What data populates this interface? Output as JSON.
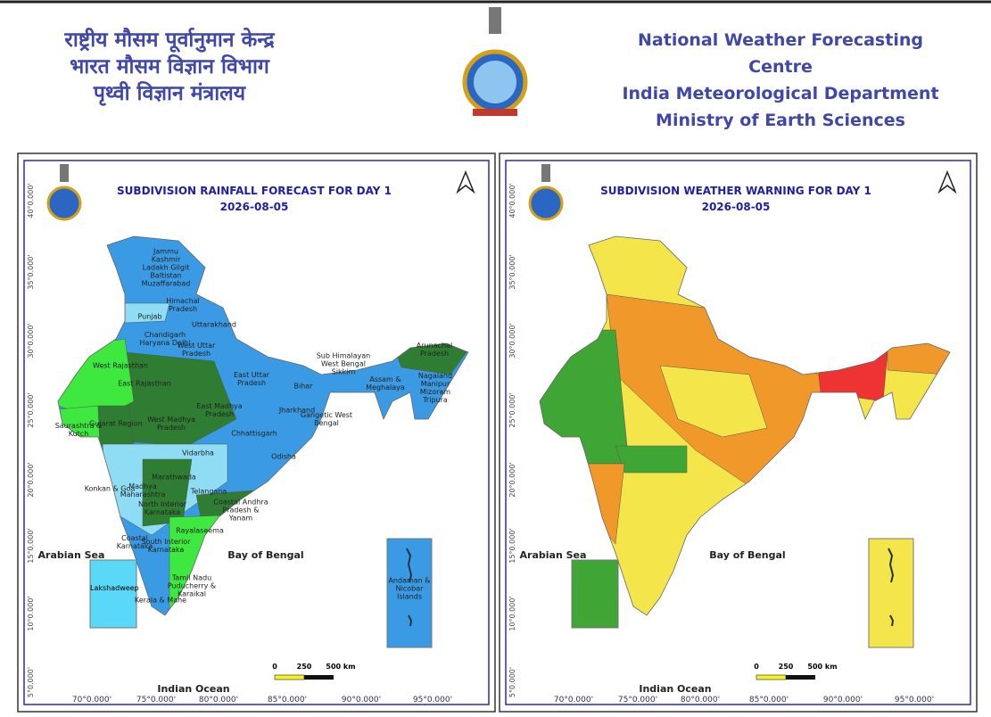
{
  "header": {
    "hindi_lines": [
      "राष्ट्रीय मौसम पूर्वानुमान केन्द्र",
      "भारत मौसम विज्ञान विभाग",
      "पृथ्वी विज्ञान मंत्रालय"
    ],
    "english_lines": [
      "National Weather Forecasting Centre",
      "India Meteorological Department",
      "Ministry of Earth Sciences"
    ]
  },
  "maps": [
    {
      "title": "SUBDIVISION RAINFALL FORECAST FOR DAY 1",
      "date": "2026-08-05",
      "sea_labels": [
        "Arabian Sea",
        "Bay of Bengal",
        "Indian Ocean"
      ],
      "lat_ticks": [
        "40°0.000'",
        "35°0.000'",
        "30°0.000'",
        "25°0.000'",
        "20°0.000'",
        "15°0.000'",
        "10°0.000'",
        "5°0.000'"
      ],
      "lon_ticks": [
        "70°0.000'",
        "75°0.000'",
        "80°0.000'",
        "85°0.000'",
        "90°0.000'",
        "95°0.000'"
      ],
      "scale": [
        "0",
        "250",
        "500 km"
      ],
      "inset_labels": [
        "Lakshadweep",
        "Andaman & Nicobar Islands"
      ],
      "region_labels": [
        "Jammu Kashmir Ladakh Gilgit Baltistan Muzaffarabad",
        "Himachal Pradesh",
        "Punjab",
        "Uttarakhand",
        "Chandigarh Haryana Delhi",
        "West Uttar Pradesh",
        "West Rajasthan",
        "East Rajasthan",
        "East Uttar Pradesh",
        "Bihar",
        "Sub Himalayan West Bengal Sikkim",
        "Arunachal Pradesh",
        "Assam & Meghalaya",
        "Nagaland Manipur Mizoram Tripura",
        "West Madhya Pradesh",
        "East Madhya Pradesh",
        "Jharkhand",
        "Gangetic West Bengal",
        "Saurashtra & Kutch",
        "Gujarat Region",
        "Chhattisgarh",
        "Odisha",
        "Vidarbha",
        "Marathwada",
        "Konkan & Goa",
        "Madhya Maharashtra",
        "Telangana",
        "North Interior Karnataka",
        "Coastal Andhra Pradesh & Yanam",
        "Rayalaseema",
        "Coastal Karnataka",
        "South Interior Karnataka",
        "Tamil Nadu Puducherry & Karaikal",
        "Kerala & Mahe"
      ]
    },
    {
      "title": "SUBDIVISION WEATHER WARNING FOR DAY 1",
      "date": "2026-08-05",
      "sea_labels": [
        "Arabian Sea",
        "Bay of Bengal",
        "Indian Ocean"
      ],
      "lat_ticks": [
        "40°0.000'",
        "35°0.000'",
        "30°0.000'",
        "25°0.000'",
        "20°0.000'",
        "15°0.000'",
        "10°0.000'",
        "5°0.000'"
      ],
      "lon_ticks": [
        "70°0.000'",
        "75°0.000'",
        "80°0.000'",
        "85°0.000'",
        "90°0.000'",
        "95°0.000'"
      ],
      "scale": [
        "0",
        "250",
        "500 km"
      ]
    }
  ]
}
